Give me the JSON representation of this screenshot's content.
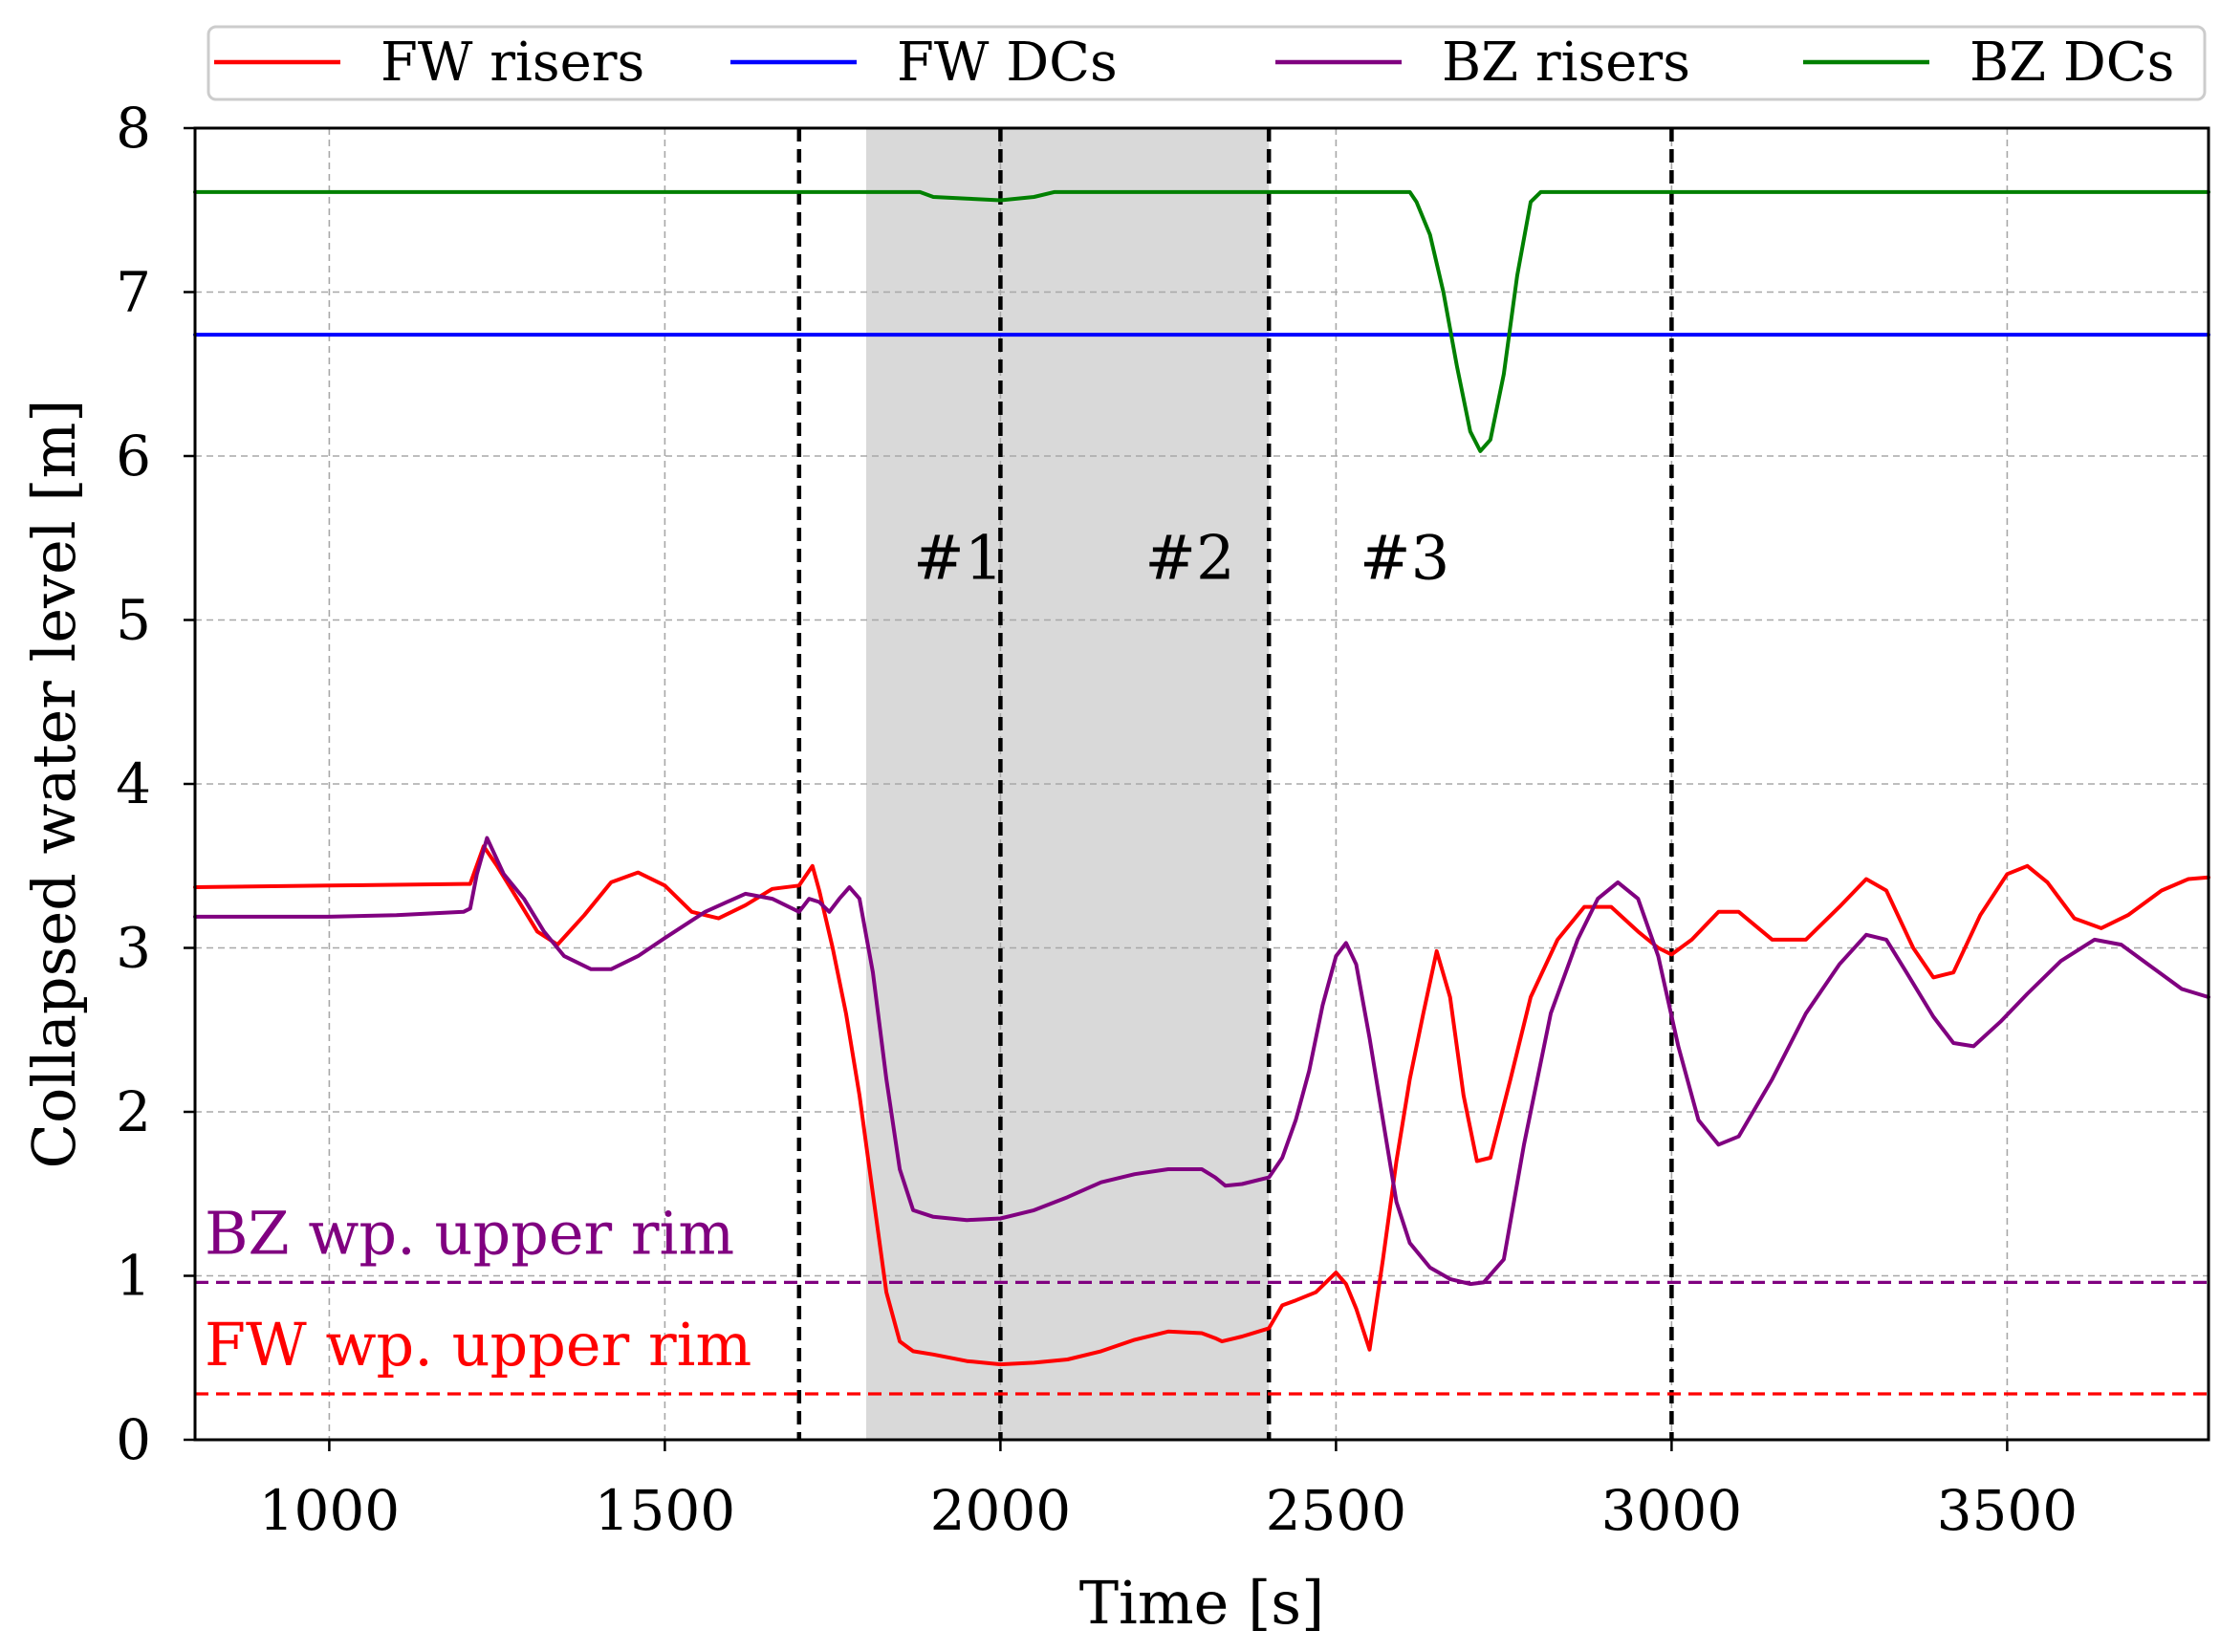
{
  "chart_data": {
    "type": "line",
    "xlabel": "Time [s]",
    "ylabel": "Collapsed water level [m]",
    "xlim": [
      800,
      3800
    ],
    "ylim": [
      0,
      8
    ],
    "xticks": [
      1000,
      1500,
      2000,
      2500,
      3000,
      3500
    ],
    "yticks": [
      0,
      1,
      2,
      3,
      4,
      5,
      6,
      7,
      8
    ],
    "grid": true,
    "legend_position": "top",
    "legend": [
      "FW risers",
      "FW DCs",
      "BZ risers",
      "BZ DCs"
    ],
    "series": [
      {
        "name": "FW risers",
        "color": "#ff0000",
        "points": [
          [
            800,
            3.37
          ],
          [
            1000,
            3.38
          ],
          [
            1200,
            3.39
          ],
          [
            1210,
            3.39
          ],
          [
            1230,
            3.62
          ],
          [
            1250,
            3.5
          ],
          [
            1280,
            3.3
          ],
          [
            1310,
            3.1
          ],
          [
            1340,
            3.02
          ],
          [
            1380,
            3.2
          ],
          [
            1420,
            3.4
          ],
          [
            1460,
            3.46
          ],
          [
            1500,
            3.38
          ],
          [
            1540,
            3.22
          ],
          [
            1580,
            3.18
          ],
          [
            1620,
            3.26
          ],
          [
            1660,
            3.36
          ],
          [
            1700,
            3.38
          ],
          [
            1710,
            3.44
          ],
          [
            1720,
            3.5
          ],
          [
            1730,
            3.35
          ],
          [
            1750,
            3.0
          ],
          [
            1770,
            2.6
          ],
          [
            1790,
            2.1
          ],
          [
            1810,
            1.5
          ],
          [
            1830,
            0.9
          ],
          [
            1850,
            0.6
          ],
          [
            1870,
            0.54
          ],
          [
            1900,
            0.52
          ],
          [
            1950,
            0.48
          ],
          [
            2000,
            0.46
          ],
          [
            2050,
            0.47
          ],
          [
            2100,
            0.49
          ],
          [
            2150,
            0.54
          ],
          [
            2200,
            0.61
          ],
          [
            2250,
            0.66
          ],
          [
            2300,
            0.65
          ],
          [
            2320,
            0.62
          ],
          [
            2330,
            0.6
          ],
          [
            2360,
            0.63
          ],
          [
            2400,
            0.68
          ],
          [
            2420,
            0.82
          ],
          [
            2440,
            0.85
          ],
          [
            2470,
            0.9
          ],
          [
            2500,
            1.02
          ],
          [
            2515,
            0.95
          ],
          [
            2530,
            0.8
          ],
          [
            2550,
            0.55
          ],
          [
            2570,
            1.1
          ],
          [
            2590,
            1.7
          ],
          [
            2610,
            2.2
          ],
          [
            2630,
            2.6
          ],
          [
            2650,
            2.98
          ],
          [
            2670,
            2.7
          ],
          [
            2690,
            2.1
          ],
          [
            2710,
            1.7
          ],
          [
            2730,
            1.72
          ],
          [
            2760,
            2.2
          ],
          [
            2790,
            2.7
          ],
          [
            2830,
            3.05
          ],
          [
            2870,
            3.25
          ],
          [
            2910,
            3.25
          ],
          [
            2950,
            3.1
          ],
          [
            2980,
            3.0
          ],
          [
            3000,
            2.96
          ],
          [
            3030,
            3.05
          ],
          [
            3070,
            3.22
          ],
          [
            3100,
            3.22
          ],
          [
            3150,
            3.05
          ],
          [
            3200,
            3.05
          ],
          [
            3250,
            3.25
          ],
          [
            3290,
            3.42
          ],
          [
            3320,
            3.35
          ],
          [
            3360,
            3.0
          ],
          [
            3390,
            2.82
          ],
          [
            3420,
            2.85
          ],
          [
            3460,
            3.2
          ],
          [
            3500,
            3.45
          ],
          [
            3530,
            3.5
          ],
          [
            3560,
            3.4
          ],
          [
            3600,
            3.18
          ],
          [
            3640,
            3.12
          ],
          [
            3680,
            3.2
          ],
          [
            3730,
            3.35
          ],
          [
            3770,
            3.42
          ],
          [
            3800,
            3.43
          ]
        ]
      },
      {
        "name": "FW DCs",
        "color": "#0000ff",
        "points": [
          [
            800,
            6.74
          ],
          [
            3800,
            6.74
          ]
        ]
      },
      {
        "name": "BZ risers",
        "color": "#800080",
        "points": [
          [
            800,
            3.19
          ],
          [
            1000,
            3.19
          ],
          [
            1100,
            3.2
          ],
          [
            1200,
            3.22
          ],
          [
            1210,
            3.24
          ],
          [
            1220,
            3.45
          ],
          [
            1235,
            3.67
          ],
          [
            1260,
            3.45
          ],
          [
            1290,
            3.3
          ],
          [
            1320,
            3.1
          ],
          [
            1350,
            2.95
          ],
          [
            1390,
            2.87
          ],
          [
            1420,
            2.87
          ],
          [
            1460,
            2.95
          ],
          [
            1500,
            3.06
          ],
          [
            1560,
            3.22
          ],
          [
            1620,
            3.33
          ],
          [
            1660,
            3.3
          ],
          [
            1700,
            3.22
          ],
          [
            1715,
            3.3
          ],
          [
            1730,
            3.28
          ],
          [
            1745,
            3.22
          ],
          [
            1760,
            3.3
          ],
          [
            1775,
            3.37
          ],
          [
            1790,
            3.3
          ],
          [
            1810,
            2.85
          ],
          [
            1830,
            2.2
          ],
          [
            1850,
            1.65
          ],
          [
            1870,
            1.4
          ],
          [
            1900,
            1.36
          ],
          [
            1950,
            1.34
          ],
          [
            2000,
            1.35
          ],
          [
            2050,
            1.4
          ],
          [
            2100,
            1.48
          ],
          [
            2150,
            1.57
          ],
          [
            2200,
            1.62
          ],
          [
            2250,
            1.65
          ],
          [
            2300,
            1.65
          ],
          [
            2320,
            1.6
          ],
          [
            2335,
            1.55
          ],
          [
            2360,
            1.56
          ],
          [
            2400,
            1.6
          ],
          [
            2420,
            1.72
          ],
          [
            2440,
            1.95
          ],
          [
            2460,
            2.25
          ],
          [
            2480,
            2.65
          ],
          [
            2500,
            2.95
          ],
          [
            2515,
            3.03
          ],
          [
            2530,
            2.9
          ],
          [
            2550,
            2.45
          ],
          [
            2570,
            1.95
          ],
          [
            2590,
            1.45
          ],
          [
            2610,
            1.2
          ],
          [
            2640,
            1.05
          ],
          [
            2670,
            0.98
          ],
          [
            2700,
            0.95
          ],
          [
            2720,
            0.96
          ],
          [
            2750,
            1.1
          ],
          [
            2780,
            1.8
          ],
          [
            2820,
            2.6
          ],
          [
            2860,
            3.05
          ],
          [
            2890,
            3.3
          ],
          [
            2920,
            3.4
          ],
          [
            2950,
            3.3
          ],
          [
            2980,
            2.95
          ],
          [
            3010,
            2.4
          ],
          [
            3040,
            1.95
          ],
          [
            3070,
            1.8
          ],
          [
            3100,
            1.85
          ],
          [
            3150,
            2.2
          ],
          [
            3200,
            2.6
          ],
          [
            3250,
            2.9
          ],
          [
            3290,
            3.08
          ],
          [
            3320,
            3.05
          ],
          [
            3350,
            2.85
          ],
          [
            3390,
            2.58
          ],
          [
            3420,
            2.42
          ],
          [
            3450,
            2.4
          ],
          [
            3490,
            2.55
          ],
          [
            3530,
            2.72
          ],
          [
            3580,
            2.92
          ],
          [
            3630,
            3.05
          ],
          [
            3670,
            3.02
          ],
          [
            3710,
            2.9
          ],
          [
            3760,
            2.75
          ],
          [
            3800,
            2.7
          ]
        ]
      },
      {
        "name": "BZ DCs",
        "color": "#008000",
        "points": [
          [
            800,
            7.61
          ],
          [
            1880,
            7.61
          ],
          [
            1900,
            7.58
          ],
          [
            1950,
            7.57
          ],
          [
            2000,
            7.56
          ],
          [
            2050,
            7.58
          ],
          [
            2080,
            7.61
          ],
          [
            2610,
            7.61
          ],
          [
            2620,
            7.55
          ],
          [
            2640,
            7.35
          ],
          [
            2660,
            7.0
          ],
          [
            2680,
            6.55
          ],
          [
            2700,
            6.15
          ],
          [
            2715,
            6.03
          ],
          [
            2730,
            6.1
          ],
          [
            2750,
            6.5
          ],
          [
            2770,
            7.1
          ],
          [
            2790,
            7.55
          ],
          [
            2805,
            7.61
          ],
          [
            3800,
            7.61
          ]
        ]
      }
    ],
    "reference_lines": [
      {
        "label": "BZ wp. upper rim",
        "value": 0.96,
        "color": "#800080"
      },
      {
        "label": "FW wp. upper rim",
        "value": 0.28,
        "color": "#ff0000"
      }
    ],
    "event_lines": [
      1700,
      2000,
      2400,
      3000
    ],
    "shaded_region": [
      1800,
      2400
    ],
    "phase_labels": [
      {
        "text": "#1",
        "x": 1870,
        "y": 5.25
      },
      {
        "text": "#2",
        "x": 2215,
        "y": 5.25
      },
      {
        "text": "#3",
        "x": 2535,
        "y": 5.25
      }
    ]
  }
}
